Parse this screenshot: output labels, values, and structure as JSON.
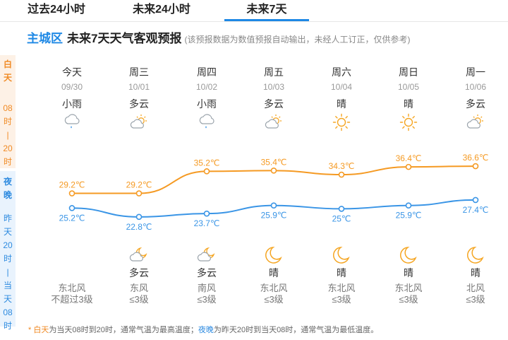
{
  "tabs": [
    {
      "label": "过去24小时",
      "active": false
    },
    {
      "label": "未来24小时",
      "active": false
    },
    {
      "label": "未来7天",
      "active": true
    }
  ],
  "header": {
    "city": "主城区",
    "title": "未来7天天气客观预报",
    "note": "(该预报数据为数值预报自动输出，未经人工订正，仅供参考)"
  },
  "leftbar": {
    "day_title": [
      "白",
      "天"
    ],
    "day_range": [
      "08",
      "时",
      "|",
      "20",
      "时"
    ],
    "night_title": [
      "夜",
      "晚"
    ],
    "night_range": [
      "昨",
      "天",
      "20",
      "时",
      "|",
      "当",
      "天",
      "08",
      "时"
    ]
  },
  "days": [
    {
      "weekday": "今天",
      "date": "09/30",
      "day_cond": "小雨",
      "day_icon": "light-rain-icon",
      "high": "29.2℃",
      "low": "25.2℃",
      "night_cond": "",
      "night_icon": "",
      "wind_dir": "东北风",
      "wind_level": "不超过3级"
    },
    {
      "weekday": "周三",
      "date": "10/01",
      "day_cond": "多云",
      "day_icon": "cloudy-day-icon",
      "high": "29.2℃",
      "low": "22.8℃",
      "night_cond": "多云",
      "night_icon": "cloudy-night-icon",
      "wind_dir": "东风",
      "wind_level": "≤3级"
    },
    {
      "weekday": "周四",
      "date": "10/02",
      "day_cond": "小雨",
      "day_icon": "light-rain-icon",
      "high": "35.2℃",
      "low": "23.7℃",
      "night_cond": "多云",
      "night_icon": "cloudy-night-icon",
      "wind_dir": "南风",
      "wind_level": "≤3级"
    },
    {
      "weekday": "周五",
      "date": "10/03",
      "day_cond": "多云",
      "day_icon": "cloudy-day-icon",
      "high": "35.4℃",
      "low": "25.9℃",
      "night_cond": "晴",
      "night_icon": "moon-icon",
      "wind_dir": "东北风",
      "wind_level": "≤3级"
    },
    {
      "weekday": "周六",
      "date": "10/04",
      "day_cond": "晴",
      "day_icon": "sun-icon",
      "high": "34.3℃",
      "low": "25℃",
      "night_cond": "晴",
      "night_icon": "moon-icon",
      "wind_dir": "东北风",
      "wind_level": "≤3级"
    },
    {
      "weekday": "周日",
      "date": "10/05",
      "day_cond": "晴",
      "day_icon": "sun-icon",
      "high": "36.4℃",
      "low": "25.9℃",
      "night_cond": "晴",
      "night_icon": "moon-icon",
      "wind_dir": "东北风",
      "wind_level": "≤3级"
    },
    {
      "weekday": "周一",
      "date": "10/06",
      "day_cond": "多云",
      "day_icon": "cloudy-day-icon",
      "high": "36.6℃",
      "low": "27.4℃",
      "night_cond": "晴",
      "night_icon": "moon-icon",
      "wind_dir": "北风",
      "wind_level": "≤3级"
    }
  ],
  "chart_data": {
    "type": "line",
    "categories": [
      "09/30",
      "10/01",
      "10/02",
      "10/03",
      "10/04",
      "10/05",
      "10/06"
    ],
    "series": [
      {
        "values": [
          29.2,
          29.2,
          35.2,
          35.4,
          34.3,
          36.4,
          36.6
        ],
        "color": "#f59a23"
      },
      {
        "values": [
          25.2,
          22.8,
          23.7,
          25.9,
          25,
          25.9,
          27.4
        ],
        "color": "#3a95e6"
      }
    ]
  },
  "footer": {
    "star": "* ",
    "day_word": "白天",
    "day_text": "为当天08时到20时，通常气温为最高温度；",
    "night_word": "夜晚",
    "night_text": "为昨天20时到当天08时，通常气温为最低温度。"
  },
  "colors": {
    "accent": "#1e88e5",
    "day": "#f08a24",
    "night": "#2e8be0"
  }
}
